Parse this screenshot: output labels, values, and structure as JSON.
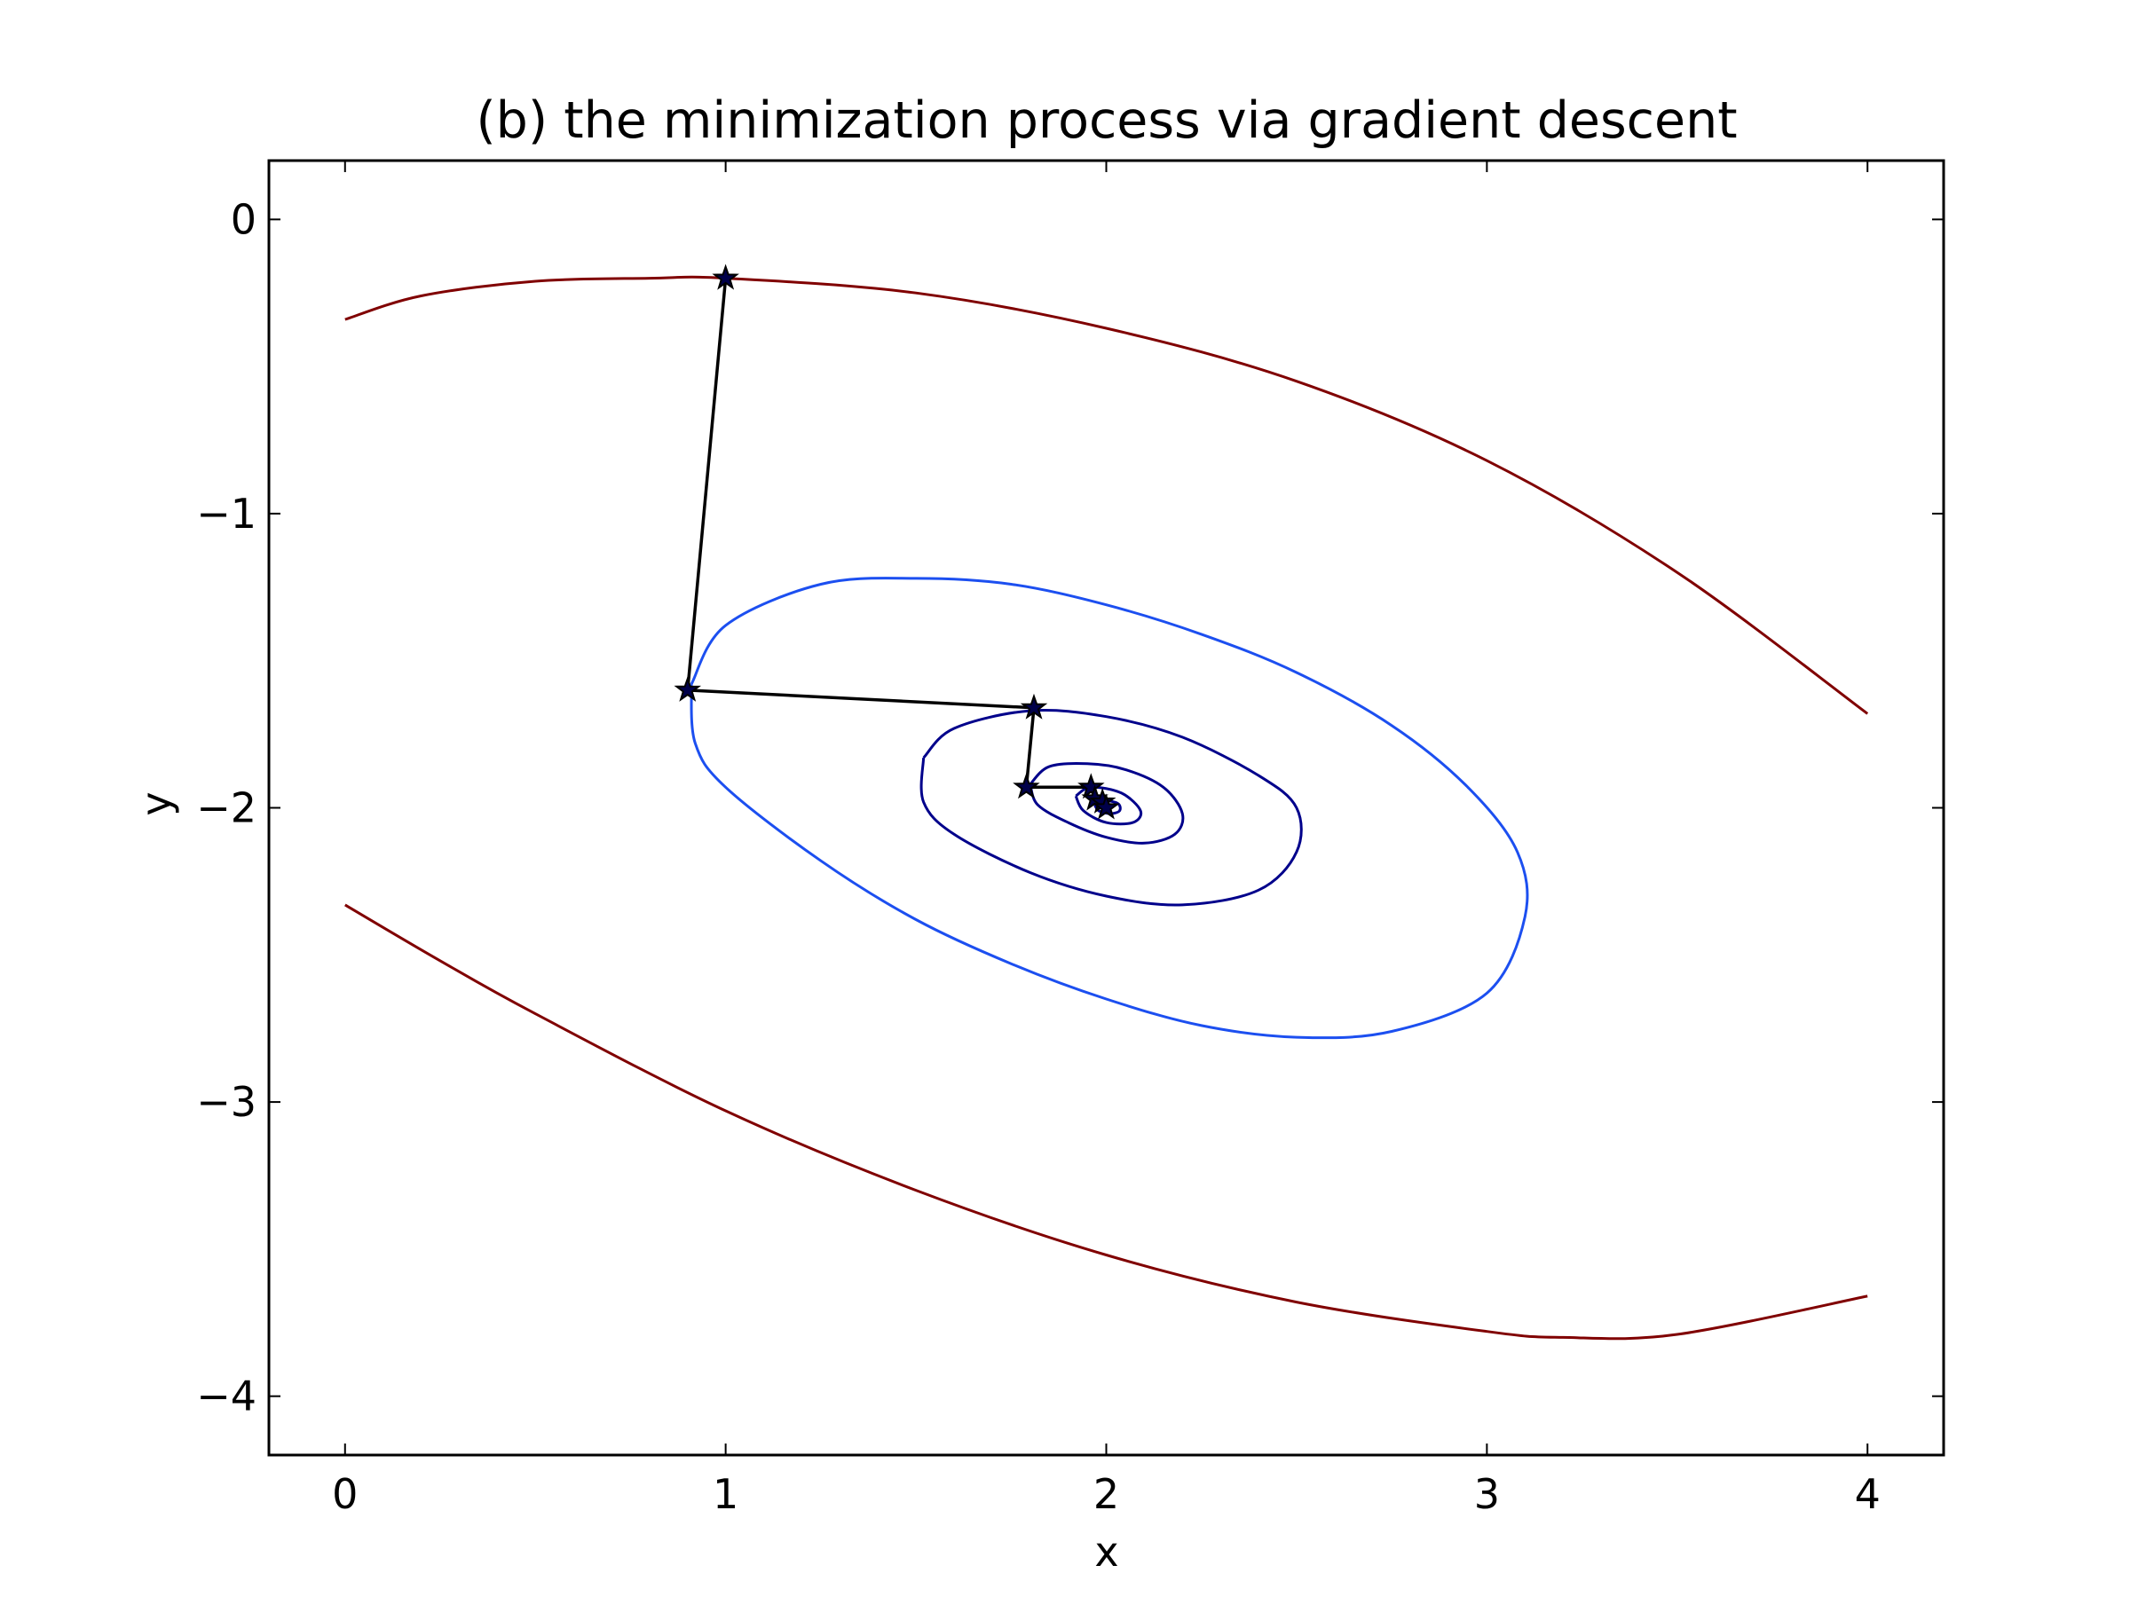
{
  "chart_data": {
    "type": "line",
    "title": "(b) the minimization process via gradient descent",
    "xlabel": "x",
    "ylabel": "y",
    "xlim": [
      -0.2,
      4.2
    ],
    "ylim": [
      -4.2,
      0.2
    ],
    "x_ticks": [
      {
        "value": 0,
        "label": "0"
      },
      {
        "value": 1,
        "label": "1"
      },
      {
        "value": 2,
        "label": "2"
      },
      {
        "value": 3,
        "label": "3"
      },
      {
        "value": 4,
        "label": "4"
      }
    ],
    "y_ticks": [
      {
        "value": 0,
        "label": "0"
      },
      {
        "value": -1,
        "label": "−1"
      },
      {
        "value": -2,
        "label": "−2"
      },
      {
        "value": -3,
        "label": "−3"
      },
      {
        "value": -4,
        "label": "−4"
      }
    ],
    "grid": false,
    "contours": {
      "center": [
        2,
        -2
      ],
      "levels": [
        {
          "name": "level-outer-dark-red",
          "color": "#800000",
          "points": [
            [
              0.0,
              -0.34
            ],
            [
              0.2,
              -0.26
            ],
            [
              0.5,
              -0.21
            ],
            [
              0.8,
              -0.2
            ],
            [
              1.0,
              -0.2
            ],
            [
              1.5,
              -0.25
            ],
            [
              2.0,
              -0.37
            ],
            [
              2.5,
              -0.55
            ],
            [
              3.0,
              -0.82
            ],
            [
              3.5,
              -1.2
            ],
            [
              4.0,
              -1.68
            ]
          ]
        },
        {
          "name": "level-outer-dark-red-lower",
          "color": "#800000",
          "points": [
            [
              0.0,
              -2.33
            ],
            [
              0.25,
              -2.52
            ],
            [
              0.5,
              -2.7
            ],
            [
              1.0,
              -3.03
            ],
            [
              1.5,
              -3.3
            ],
            [
              2.0,
              -3.52
            ],
            [
              2.5,
              -3.68
            ],
            [
              3.0,
              -3.78
            ],
            [
              3.2,
              -3.8
            ],
            [
              3.5,
              -3.79
            ],
            [
              4.0,
              -3.66
            ]
          ]
        },
        {
          "name": "level-blue",
          "color": "#1c4ff0",
          "radius": 1.0,
          "points": [
            [
              0.91,
              -1.58
            ],
            [
              1.0,
              -1.38
            ],
            [
              1.25,
              -1.24
            ],
            [
              1.5,
              -1.22
            ],
            [
              1.75,
              -1.24
            ],
            [
              2.0,
              -1.31
            ],
            [
              2.25,
              -1.41
            ],
            [
              2.5,
              -1.54
            ],
            [
              2.75,
              -1.72
            ],
            [
              2.95,
              -1.93
            ],
            [
              3.08,
              -2.15
            ],
            [
              3.1,
              -2.37
            ],
            [
              3.0,
              -2.63
            ],
            [
              2.75,
              -2.76
            ],
            [
              2.5,
              -2.78
            ],
            [
              2.25,
              -2.74
            ],
            [
              2.0,
              -2.65
            ],
            [
              1.75,
              -2.53
            ],
            [
              1.5,
              -2.38
            ],
            [
              1.25,
              -2.18
            ],
            [
              1.0,
              -1.93
            ],
            [
              0.92,
              -1.78
            ],
            [
              0.91,
              -1.58
            ]
          ]
        },
        {
          "name": "level-navy-1",
          "color": "#00008b",
          "radius": 0.5,
          "points": [
            [
              1.52,
              -1.83
            ],
            [
              1.6,
              -1.73
            ],
            [
              1.8,
              -1.67
            ],
            [
              2.0,
              -1.69
            ],
            [
              2.2,
              -1.76
            ],
            [
              2.4,
              -1.89
            ],
            [
              2.5,
              -2.0
            ],
            [
              2.5,
              -2.15
            ],
            [
              2.4,
              -2.28
            ],
            [
              2.2,
              -2.33
            ],
            [
              2.0,
              -2.3
            ],
            [
              1.8,
              -2.22
            ],
            [
              1.6,
              -2.09
            ],
            [
              1.52,
              -1.98
            ],
            [
              1.52,
              -1.83
            ]
          ]
        },
        {
          "name": "level-navy-2",
          "color": "#00008b",
          "radius": 0.2,
          "points": [
            [
              1.8,
              -1.92
            ],
            [
              1.85,
              -1.86
            ],
            [
              1.95,
              -1.85
            ],
            [
              2.05,
              -1.87
            ],
            [
              2.15,
              -1.93
            ],
            [
              2.2,
              -2.02
            ],
            [
              2.18,
              -2.09
            ],
            [
              2.1,
              -2.12
            ],
            [
              2.0,
              -2.1
            ],
            [
              1.9,
              -2.05
            ],
            [
              1.82,
              -1.99
            ],
            [
              1.8,
              -1.92
            ]
          ]
        },
        {
          "name": "level-navy-3",
          "color": "#00008b",
          "radius": 0.08,
          "points": [
            [
              1.92,
              -1.96
            ],
            [
              1.96,
              -1.93
            ],
            [
              2.04,
              -1.95
            ],
            [
              2.09,
              -2.01
            ],
            [
              2.07,
              -2.05
            ],
            [
              2.0,
              -2.05
            ],
            [
              1.94,
              -2.01
            ],
            [
              1.92,
              -1.96
            ]
          ]
        },
        {
          "name": "level-navy-4",
          "color": "#00008b",
          "radius": 0.03,
          "points": [
            [
              1.97,
              -1.99
            ],
            [
              1.99,
              -1.975
            ],
            [
              2.03,
              -1.985
            ],
            [
              2.035,
              -2.01
            ],
            [
              2.01,
              -2.02
            ],
            [
              1.98,
              -2.01
            ],
            [
              1.97,
              -1.99
            ]
          ]
        }
      ]
    },
    "series": [
      {
        "color": "#000000",
        "marker": "star",
        "x": [
          1.0,
          0.9,
          1.81,
          1.79,
          1.96,
          1.97,
          1.99,
          2.0
        ],
        "y": [
          -0.2,
          -1.6,
          -1.66,
          -1.93,
          -1.93,
          -1.97,
          -1.98,
          -2.0
        ]
      }
    ]
  }
}
